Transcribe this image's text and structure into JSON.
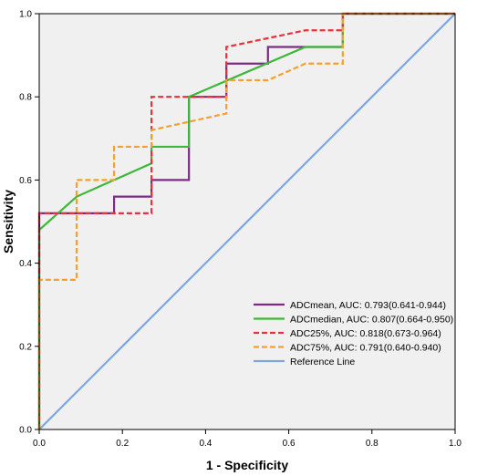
{
  "chart_data": {
    "type": "line",
    "title": "",
    "xlabel": "1 - Specificity",
    "ylabel": "Sensitivity",
    "xlim": [
      0,
      1
    ],
    "ylim": [
      0,
      1
    ],
    "x_ticks": [
      "0.0",
      "0.2",
      "0.4",
      "0.6",
      "0.8",
      "1.0"
    ],
    "y_ticks": [
      "0.0",
      "0.2",
      "0.4",
      "0.6",
      "0.8",
      "1.0"
    ],
    "grid": false,
    "legend_position": "bottom-right",
    "background": "#f0f0f0",
    "series": [
      {
        "name": "ADCmean, AUC: 0.793(0.641-0.944)",
        "color": "#7b2c82",
        "dash": "solid",
        "points": [
          [
            0,
            0
          ],
          [
            0,
            0.52
          ],
          [
            0.18,
            0.52
          ],
          [
            0.18,
            0.56
          ],
          [
            0.27,
            0.56
          ],
          [
            0.27,
            0.6
          ],
          [
            0.36,
            0.6
          ],
          [
            0.36,
            0.8
          ],
          [
            0.45,
            0.8
          ],
          [
            0.45,
            0.88
          ],
          [
            0.55,
            0.88
          ],
          [
            0.55,
            0.92
          ],
          [
            0.73,
            0.92
          ],
          [
            0.73,
            1.0
          ],
          [
            1.0,
            1.0
          ]
        ]
      },
      {
        "name": "ADCmedian, AUC: 0.807(0.664-0.950)",
        "color": "#3cb83a",
        "dash": "solid",
        "points": [
          [
            0,
            0
          ],
          [
            0,
            0.48
          ],
          [
            0.09,
            0.56
          ],
          [
            0.27,
            0.64
          ],
          [
            0.27,
            0.68
          ],
          [
            0.36,
            0.68
          ],
          [
            0.36,
            0.8
          ],
          [
            0.64,
            0.92
          ],
          [
            0.73,
            0.92
          ],
          [
            0.73,
            1.0
          ],
          [
            1.0,
            1.0
          ]
        ]
      },
      {
        "name": "ADC25%, AUC: 0.818(0.673-0.964)",
        "color": "#e8313a",
        "dash": "dashed",
        "points": [
          [
            0,
            0
          ],
          [
            0,
            0.52
          ],
          [
            0.27,
            0.52
          ],
          [
            0.27,
            0.8
          ],
          [
            0.45,
            0.8
          ],
          [
            0.45,
            0.92
          ],
          [
            0.64,
            0.96
          ],
          [
            0.73,
            0.96
          ],
          [
            0.73,
            1.0
          ],
          [
            1.0,
            1.0
          ]
        ]
      },
      {
        "name": "ADC75%, AUC: 0.791(0.640-0.940)",
        "color": "#f5a02d",
        "dash": "dashed",
        "points": [
          [
            0,
            0
          ],
          [
            0,
            0.36
          ],
          [
            0.09,
            0.36
          ],
          [
            0.09,
            0.6
          ],
          [
            0.18,
            0.6
          ],
          [
            0.18,
            0.68
          ],
          [
            0.27,
            0.68
          ],
          [
            0.27,
            0.72
          ],
          [
            0.45,
            0.76
          ],
          [
            0.45,
            0.84
          ],
          [
            0.55,
            0.84
          ],
          [
            0.64,
            0.88
          ],
          [
            0.73,
            0.88
          ],
          [
            0.73,
            1.0
          ],
          [
            1.0,
            1.0
          ]
        ]
      },
      {
        "name": "Reference Line",
        "color": "#7ea6d6",
        "dash": "solid",
        "points": [
          [
            0,
            0
          ],
          [
            1,
            1
          ]
        ]
      }
    ]
  }
}
